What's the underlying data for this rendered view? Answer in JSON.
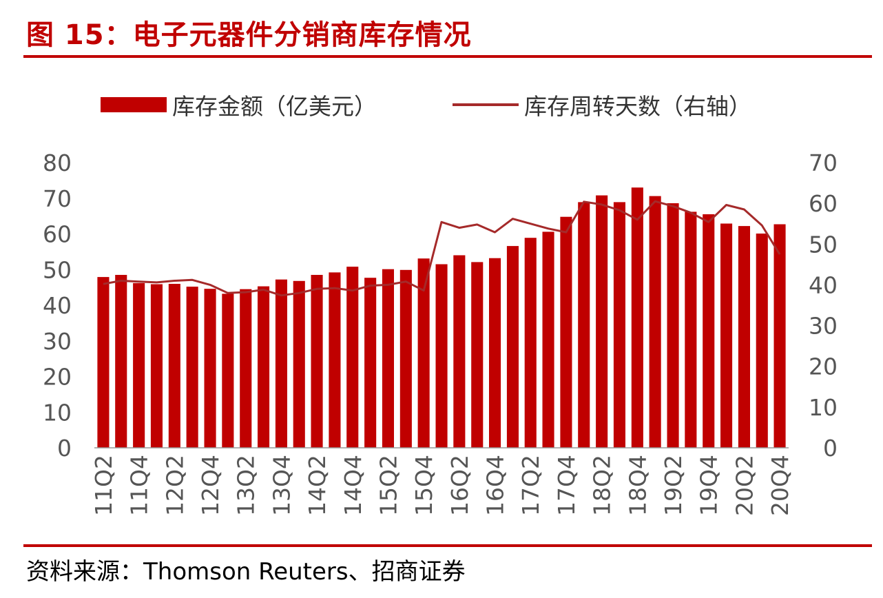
{
  "figure": {
    "title": "图 15：电子元器件分销商库存情况",
    "source": "资料来源：Thomson Reuters、招商证券"
  },
  "colors": {
    "accent": "#c00000",
    "bar": "#c00000",
    "line": "#a52a2a",
    "text": "#555555"
  },
  "chart_data": {
    "type": "bar",
    "title": "",
    "legend": {
      "placement": "top",
      "entries": [
        "库存金额（亿美元）",
        "库存周转天数（右轴）"
      ]
    },
    "categories": [
      "11Q2",
      "11Q3",
      "11Q4",
      "12Q1",
      "12Q2",
      "12Q3",
      "12Q4",
      "13Q1",
      "13Q2",
      "13Q3",
      "13Q4",
      "14Q1",
      "14Q2",
      "14Q3",
      "14Q4",
      "15Q1",
      "15Q2",
      "15Q3",
      "15Q4",
      "16Q1",
      "16Q2",
      "16Q3",
      "16Q4",
      "17Q1",
      "17Q2",
      "17Q3",
      "17Q4",
      "18Q1",
      "18Q2",
      "18Q3",
      "18Q4",
      "19Q1",
      "19Q2",
      "19Q3",
      "19Q4",
      "20Q1",
      "20Q2",
      "20Q3",
      "20Q4"
    ],
    "tick_labels": [
      "11Q2",
      "11Q4",
      "12Q2",
      "12Q4",
      "13Q2",
      "13Q4",
      "14Q2",
      "14Q4",
      "15Q2",
      "15Q4",
      "16Q2",
      "16Q4",
      "17Q2",
      "17Q4",
      "18Q2",
      "18Q4",
      "19Q2",
      "19Q4",
      "20Q2",
      "20Q4"
    ],
    "series": [
      {
        "name": "库存金额（亿美元）",
        "type": "bar",
        "axis": "left",
        "values": [
          47.9,
          48.5,
          46.2,
          45.9,
          46.0,
          45.2,
          44.6,
          43.2,
          44.5,
          45.3,
          47.2,
          46.8,
          48.5,
          49.2,
          50.8,
          47.7,
          50.1,
          49.9,
          53.1,
          51.5,
          54.0,
          52.1,
          53.2,
          56.6,
          58.9,
          60.6,
          64.8,
          68.9,
          70.8,
          68.9,
          73.0,
          70.6,
          68.6,
          66.2,
          65.5,
          62.9,
          62.2,
          60.1,
          62.7
        ]
      },
      {
        "name": "库存周转天数（右轴）",
        "type": "line",
        "axis": "right",
        "values": [
          40.2,
          41.0,
          40.8,
          40.6,
          41.0,
          41.2,
          40.0,
          38.0,
          38.2,
          38.8,
          37.4,
          38.0,
          39.0,
          39.2,
          38.6,
          39.8,
          40.0,
          40.8,
          38.6,
          55.4,
          54.0,
          54.8,
          52.9,
          56.2,
          55.0,
          53.8,
          52.9,
          60.4,
          59.7,
          58.3,
          56.0,
          60.5,
          59.3,
          57.7,
          55.4,
          59.6,
          58.5,
          54.6,
          47.5
        ]
      }
    ],
    "y_left": {
      "lim": [
        0,
        80
      ],
      "ticks": [
        0,
        10,
        20,
        30,
        40,
        50,
        60,
        70,
        80
      ]
    },
    "y_right": {
      "lim": [
        0,
        70
      ],
      "ticks": [
        0,
        10,
        20,
        30,
        40,
        50,
        60,
        70
      ]
    },
    "grid": false
  }
}
